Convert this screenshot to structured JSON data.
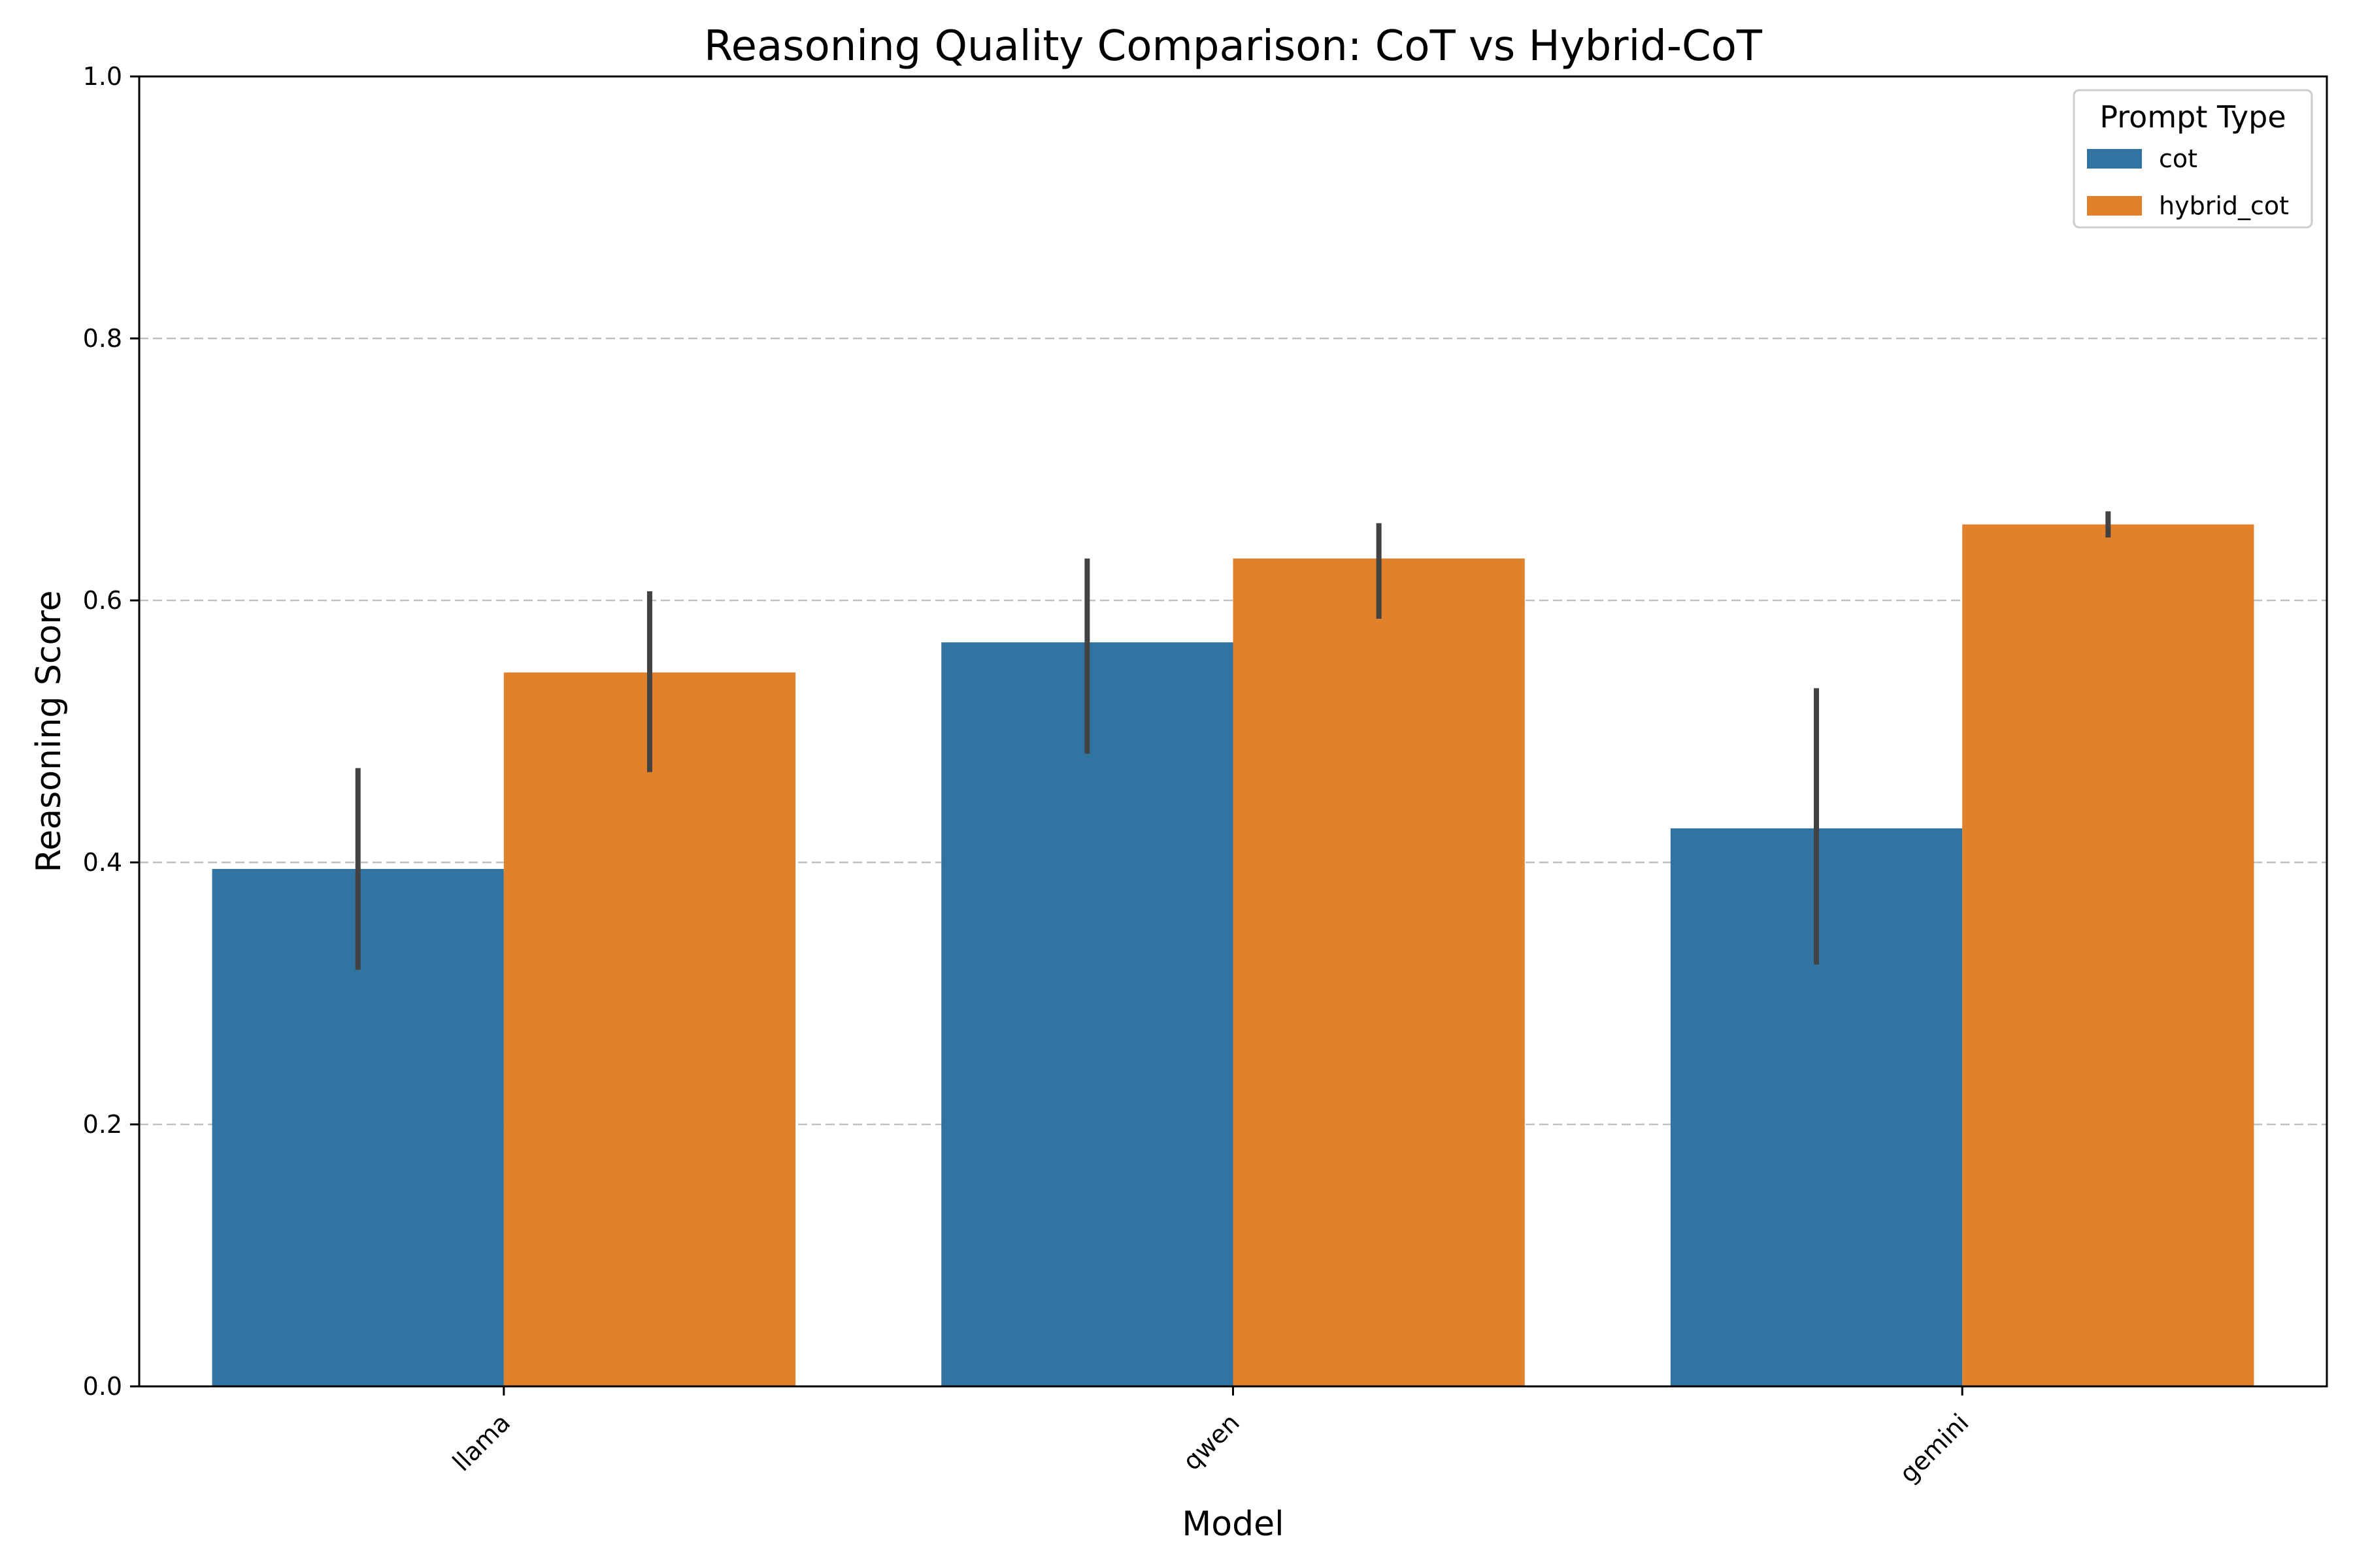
{
  "chart_data": {
    "type": "bar",
    "title": "Reasoning Quality Comparison: CoT vs Hybrid-CoT",
    "xlabel": "Model",
    "ylabel": "Reasoning Score",
    "categories": [
      "llama",
      "qwen",
      "gemini"
    ],
    "ylim": [
      0,
      1.0
    ],
    "yticks": [
      0.0,
      0.2,
      0.4,
      0.6,
      0.8,
      1.0
    ],
    "ytick_labels": [
      "0.0",
      "0.2",
      "0.4",
      "0.6",
      "0.8",
      "1.0"
    ],
    "grid": "y, dashed",
    "legend": {
      "title": "Prompt Type",
      "placement": "top-right"
    },
    "series": [
      {
        "name": "cot",
        "color": "#3274a1",
        "values": [
          0.395,
          0.568,
          0.426
        ],
        "error_low": [
          0.318,
          0.483,
          0.322
        ],
        "error_high": [
          0.472,
          0.632,
          0.533
        ]
      },
      {
        "name": "hybrid_cot",
        "color": "#e1812c",
        "values": [
          0.545,
          0.632,
          0.658
        ],
        "error_low": [
          0.469,
          0.586,
          0.648
        ],
        "error_high": [
          0.607,
          0.659,
          0.668
        ]
      }
    ]
  }
}
